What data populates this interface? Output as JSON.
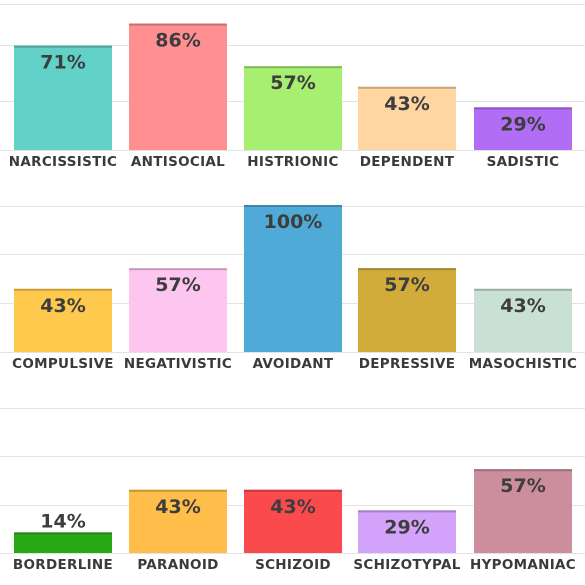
{
  "chart_data": {
    "type": "bar",
    "ylim": [
      0,
      100
    ],
    "grid": true,
    "value_suffix": "%",
    "panels": [
      {
        "categories": [
          "NARCISSISTIC",
          "ANTISOCIAL",
          "HISTRIONIC",
          "DEPENDENT",
          "SADISTIC"
        ],
        "values": [
          71,
          86,
          57,
          43,
          29
        ],
        "colors": [
          "#62d2c9",
          "#ff8f90",
          "#a7ef70",
          "#ffd5a2",
          "#b16df4"
        ]
      },
      {
        "categories": [
          "COMPULSIVE",
          "NEGATIVISTIC",
          "AVOIDANT",
          "DEPRESSIVE",
          "MASOCHISTIC"
        ],
        "values": [
          43,
          57,
          100,
          57,
          43
        ],
        "colors": [
          "#ffc94e",
          "#fcc6f0",
          "#4faad7",
          "#d1ac3a",
          "#c9e1d5"
        ]
      },
      {
        "categories": [
          "BORDERLINE",
          "PARANOID",
          "SCHIZOID",
          "SCHIZOTYPAL",
          "HYPOMANIAC"
        ],
        "values": [
          14,
          43,
          43,
          29,
          57
        ],
        "colors": [
          "#2aa917",
          "#ffbe4a",
          "#fb4a4e",
          "#d3a3fb",
          "#cc8e9c"
        ]
      }
    ]
  }
}
